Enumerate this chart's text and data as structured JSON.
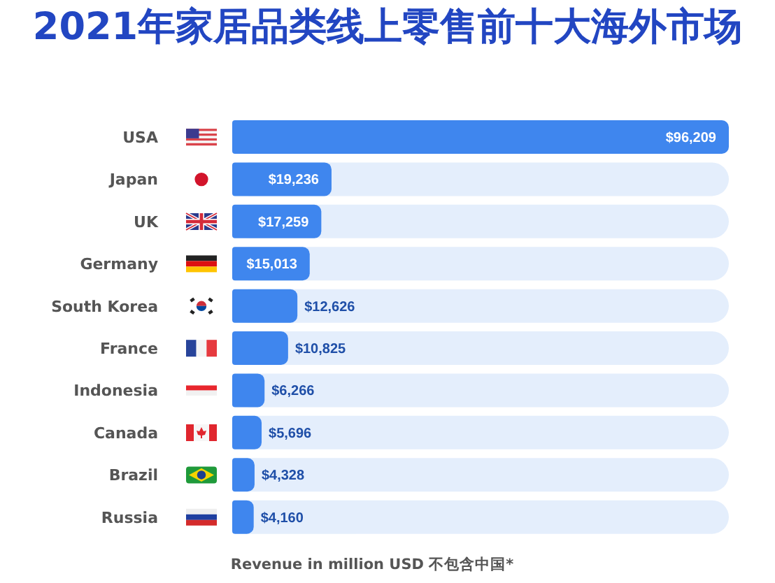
{
  "chart_data": {
    "type": "bar",
    "orientation": "horizontal",
    "title": "2021年家居品类线上零售前十大海外市场",
    "xlabel": "Revenue in million USD 不包含中国*",
    "categories": [
      "USA",
      "Japan",
      "UK",
      "Germany",
      "South Korea",
      "France",
      "Indonesia",
      "Canada",
      "Brazil",
      "Russia"
    ],
    "values": [
      96209,
      19236,
      17259,
      15013,
      12626,
      10825,
      6266,
      5696,
      4328,
      4160
    ],
    "value_labels": [
      "$96,209",
      "$19,236",
      "$17,259",
      "$15,013",
      "$12,626",
      "$10,825",
      "$6,266",
      "$5,696",
      "$4,328",
      "$4,160"
    ],
    "color": "#3f86ee",
    "tick_labels": "y"
  }
}
